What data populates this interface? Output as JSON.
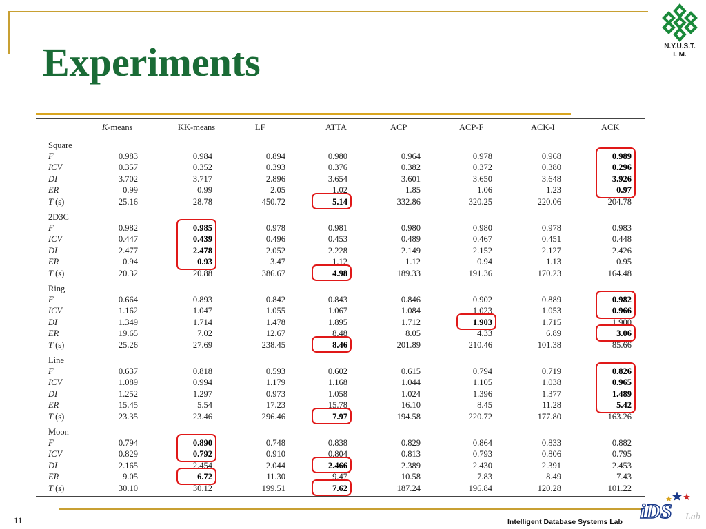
{
  "slide": {
    "title": "Experiments",
    "page_number": "11",
    "footer": "Intelligent Database Systems Lab",
    "logo_text_line1": "N.Y.U.S.T.",
    "logo_text_line2": "I. M.",
    "lab_logo_text": "iDS",
    "lab_logo_sub": "Lab",
    "colors": {
      "title": "#1a6b36",
      "accent": "#c8a032",
      "highlight": "#e01818"
    }
  },
  "table": {
    "columns": [
      "K-means",
      "KK-means",
      "LF",
      "ATTA",
      "ACP",
      "ACP-F",
      "ACK-I",
      "ACK"
    ],
    "groups": [
      {
        "name": "Square",
        "rows": [
          {
            "metric": "F",
            "unit": "",
            "values": [
              "0.983",
              "0.984",
              "0.894",
              "0.980",
              "0.964",
              "0.978",
              "0.968",
              "0.989"
            ],
            "bold": [
              7
            ]
          },
          {
            "metric": "ICV",
            "unit": "",
            "values": [
              "0.357",
              "0.352",
              "0.393",
              "0.376",
              "0.382",
              "0.372",
              "0.380",
              "0.296"
            ],
            "bold": [
              7
            ]
          },
          {
            "metric": "DI",
            "unit": "",
            "values": [
              "3.702",
              "3.717",
              "2.896",
              "3.654",
              "3.601",
              "3.650",
              "3.648",
              "3.926"
            ],
            "bold": [
              7
            ]
          },
          {
            "metric": "ER",
            "unit": "",
            "values": [
              "0.99",
              "0.99",
              "2.05",
              "1.02",
              "1.85",
              "1.06",
              "1.23",
              "0.97"
            ],
            "bold": [
              7
            ]
          },
          {
            "metric": "T",
            "unit": " (s)",
            "values": [
              "25.16",
              "28.78",
              "450.72",
              "5.14",
              "332.86",
              "320.25",
              "220.06",
              "204.78"
            ],
            "bold": [
              3
            ]
          }
        ]
      },
      {
        "name": "2D3C",
        "rows": [
          {
            "metric": "F",
            "unit": "",
            "values": [
              "0.982",
              "0.985",
              "0.978",
              "0.981",
              "0.980",
              "0.980",
              "0.978",
              "0.983"
            ],
            "bold": [
              1
            ]
          },
          {
            "metric": "ICV",
            "unit": "",
            "values": [
              "0.447",
              "0.439",
              "0.496",
              "0.453",
              "0.489",
              "0.467",
              "0.451",
              "0.448"
            ],
            "bold": [
              1
            ]
          },
          {
            "metric": "DI",
            "unit": "",
            "values": [
              "2.477",
              "2.478",
              "2.052",
              "2.228",
              "2.149",
              "2.152",
              "2.127",
              "2.426"
            ],
            "bold": [
              1
            ]
          },
          {
            "metric": "ER",
            "unit": "",
            "values": [
              "0.94",
              "0.93",
              "3.47",
              "1.12",
              "1.12",
              "0.94",
              "1.13",
              "0.95"
            ],
            "bold": [
              1
            ]
          },
          {
            "metric": "T",
            "unit": " (s)",
            "values": [
              "20.32",
              "20.88",
              "386.67",
              "4.98",
              "189.33",
              "191.36",
              "170.23",
              "164.48"
            ],
            "bold": [
              3
            ]
          }
        ]
      },
      {
        "name": "Ring",
        "rows": [
          {
            "metric": "F",
            "unit": "",
            "values": [
              "0.664",
              "0.893",
              "0.842",
              "0.843",
              "0.846",
              "0.902",
              "0.889",
              "0.982"
            ],
            "bold": [
              7
            ]
          },
          {
            "metric": "ICV",
            "unit": "",
            "values": [
              "1.162",
              "1.047",
              "1.055",
              "1.067",
              "1.084",
              "1.023",
              "1.053",
              "0.966"
            ],
            "bold": [
              7
            ]
          },
          {
            "metric": "DI",
            "unit": "",
            "values": [
              "1.349",
              "1.714",
              "1.478",
              "1.895",
              "1.712",
              "1.903",
              "1.715",
              "1.900"
            ],
            "bold": [
              5
            ]
          },
          {
            "metric": "ER",
            "unit": "",
            "values": [
              "19.65",
              "7.02",
              "12.67",
              "8.48",
              "8.05",
              "4.33",
              "6.89",
              "3.06"
            ],
            "bold": [
              7
            ]
          },
          {
            "metric": "T",
            "unit": " (s)",
            "values": [
              "25.26",
              "27.69",
              "238.45",
              "8.46",
              "201.89",
              "210.46",
              "101.38",
              "85.66"
            ],
            "bold": [
              3
            ]
          }
        ]
      },
      {
        "name": "Line",
        "rows": [
          {
            "metric": "F",
            "unit": "",
            "values": [
              "0.637",
              "0.818",
              "0.593",
              "0.602",
              "0.615",
              "0.794",
              "0.719",
              "0.826"
            ],
            "bold": [
              7
            ]
          },
          {
            "metric": "ICV",
            "unit": "",
            "values": [
              "1.089",
              "0.994",
              "1.179",
              "1.168",
              "1.044",
              "1.105",
              "1.038",
              "0.965"
            ],
            "bold": [
              7
            ]
          },
          {
            "metric": "DI",
            "unit": "",
            "values": [
              "1.252",
              "1.297",
              "0.973",
              "1.058",
              "1.024",
              "1.396",
              "1.377",
              "1.489"
            ],
            "bold": [
              7
            ]
          },
          {
            "metric": "ER",
            "unit": "",
            "values": [
              "15.45",
              "5.54",
              "17.23",
              "15.78",
              "16.10",
              "8.45",
              "11.28",
              "5.42"
            ],
            "bold": [
              7
            ]
          },
          {
            "metric": "T",
            "unit": " (s)",
            "values": [
              "23.35",
              "23.46",
              "296.46",
              "7.97",
              "194.58",
              "220.72",
              "177.80",
              "163.26"
            ],
            "bold": [
              3
            ]
          }
        ]
      },
      {
        "name": "Moon",
        "rows": [
          {
            "metric": "F",
            "unit": "",
            "values": [
              "0.794",
              "0.890",
              "0.748",
              "0.838",
              "0.829",
              "0.864",
              "0.833",
              "0.882"
            ],
            "bold": [
              1
            ]
          },
          {
            "metric": "ICV",
            "unit": "",
            "values": [
              "0.829",
              "0.792",
              "0.910",
              "0.804",
              "0.813",
              "0.793",
              "0.806",
              "0.795"
            ],
            "bold": [
              1
            ]
          },
          {
            "metric": "DI",
            "unit": "",
            "values": [
              "2.165",
              "2.454",
              "2.044",
              "2.466",
              "2.389",
              "2.430",
              "2.391",
              "2.453"
            ],
            "bold": [
              3
            ]
          },
          {
            "metric": "ER",
            "unit": "",
            "values": [
              "9.05",
              "6.72",
              "11.30",
              "9.47",
              "10.58",
              "7.83",
              "8.49",
              "7.43"
            ],
            "bold": [
              1
            ]
          },
          {
            "metric": "T",
            "unit": " (s)",
            "values": [
              "30.10",
              "30.12",
              "199.51",
              "7.62",
              "187.24",
              "196.84",
              "120.28",
              "101.22"
            ],
            "bold": [
              3
            ]
          }
        ]
      }
    ]
  }
}
